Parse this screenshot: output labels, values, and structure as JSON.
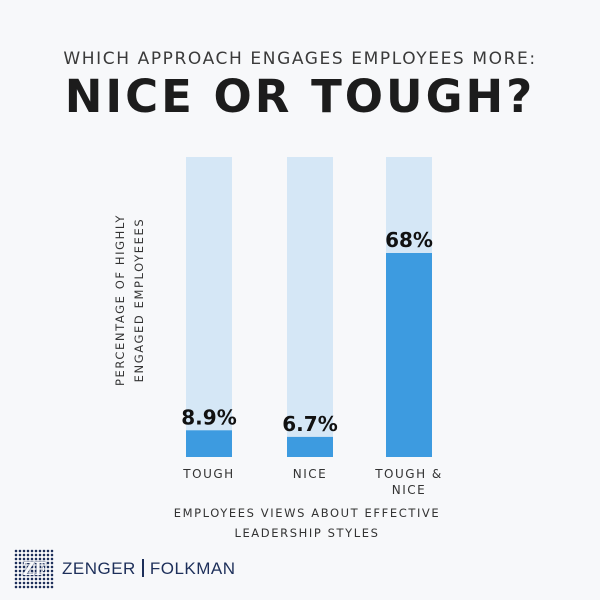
{
  "header": {
    "subtitle": "WHICH APPROACH ENGAGES EMPLOYEES MORE:",
    "title": "NICE OR TOUGH?"
  },
  "chart_data": {
    "type": "bar",
    "categories": [
      "TOUGH",
      "NICE",
      "TOUGH & NICE"
    ],
    "category_lines": [
      [
        "TOUGH"
      ],
      [
        "NICE"
      ],
      [
        "TOUGH &",
        "NICE"
      ]
    ],
    "values": [
      8.9,
      6.7,
      68
    ],
    "value_labels": [
      "8.9%",
      "6.7%",
      "68%"
    ],
    "ylim": [
      0,
      100
    ],
    "ylabel_lines": [
      "PERCENTAGE OF HIGHLY",
      "ENGAGED EMPLOYEEES"
    ],
    "xlabel_lines": [
      "EMPLOYEES VIEWS ABOUT EFFECTIVE",
      "LEADERSHIP STYLES"
    ],
    "colors": {
      "bar": "#3d9be0",
      "track": "#d5e7f6"
    }
  },
  "logo": {
    "mark": "ZF",
    "name_left": "ZENGER",
    "name_right": "FOLKMAN"
  }
}
